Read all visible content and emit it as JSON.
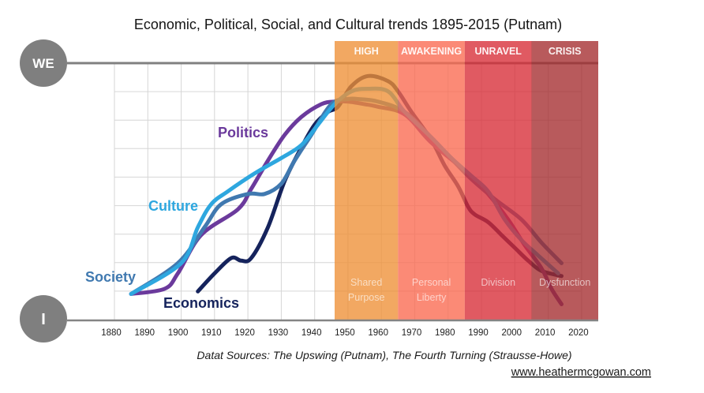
{
  "chart_data": {
    "type": "line",
    "title": "Economic, Political, Social, and Cultural trends 1895-2015 (Putnam)",
    "xlabel": "",
    "ylabel": "",
    "xlim": [
      1880,
      2025
    ],
    "ylim": [
      0,
      100
    ],
    "x_ticks": [
      1880,
      1890,
      1900,
      1910,
      1920,
      1930,
      1940,
      1950,
      1960,
      1970,
      1980,
      1990,
      2000,
      2010,
      2020
    ],
    "y_axis_labels": {
      "top": "WE",
      "bottom": "I"
    },
    "grid": true,
    "legend": "inline labels next to curves",
    "series": [
      {
        "name": "Politics",
        "color": "#6b3a9c",
        "points": [
          [
            1885,
            10
          ],
          [
            1895,
            12
          ],
          [
            1899,
            18
          ],
          [
            1906,
            33
          ],
          [
            1917,
            43
          ],
          [
            1921,
            51
          ],
          [
            1926,
            62
          ],
          [
            1931,
            72
          ],
          [
            1936,
            79
          ],
          [
            1942,
            84
          ],
          [
            1946,
            85
          ],
          [
            1950,
            85
          ],
          [
            1955,
            84
          ],
          [
            1959,
            83
          ],
          [
            1967,
            80
          ],
          [
            1975,
            69
          ],
          [
            1986,
            57
          ],
          [
            1992,
            49
          ],
          [
            1998,
            39
          ],
          [
            2003,
            29
          ],
          [
            2008,
            20
          ],
          [
            2011,
            12
          ],
          [
            2014,
            6
          ]
        ]
      },
      {
        "name": "Culture",
        "color": "#2ea7df",
        "points": [
          [
            1885,
            10
          ],
          [
            1900,
            22
          ],
          [
            1905,
            36
          ],
          [
            1909,
            45
          ],
          [
            1914,
            50
          ],
          [
            1922,
            57
          ],
          [
            1930,
            63
          ],
          [
            1936,
            68
          ],
          [
            1941,
            76
          ],
          [
            1946,
            84
          ],
          [
            1951,
            89
          ],
          [
            1956,
            90
          ],
          [
            1962,
            89
          ],
          [
            1967,
            81
          ],
          [
            1975,
            71
          ],
          [
            1981,
            63
          ],
          [
            1987,
            56
          ],
          [
            1992,
            50
          ],
          [
            1997,
            39
          ],
          [
            2002,
            31
          ],
          [
            2007,
            25
          ],
          [
            2013,
            18
          ]
        ]
      },
      {
        "name": "Society",
        "color": "#4079b0",
        "points": [
          [
            1885,
            10
          ],
          [
            1899,
            22
          ],
          [
            1907,
            36
          ],
          [
            1912,
            45
          ],
          [
            1920,
            49
          ],
          [
            1925,
            49
          ],
          [
            1930,
            53
          ],
          [
            1934,
            62
          ],
          [
            1939,
            72
          ],
          [
            1945,
            84
          ],
          [
            1950,
            86
          ],
          [
            1953,
            86
          ],
          [
            1959,
            85
          ],
          [
            1967,
            81
          ],
          [
            1975,
            71
          ],
          [
            1986,
            56
          ],
          [
            1994,
            47
          ],
          [
            2002,
            39
          ],
          [
            2008,
            30
          ],
          [
            2014,
            22
          ]
        ]
      },
      {
        "name": "Economics",
        "color": "#15235c",
        "points": [
          [
            1905,
            11
          ],
          [
            1910,
            18
          ],
          [
            1915,
            24
          ],
          [
            1918,
            23
          ],
          [
            1921,
            24
          ],
          [
            1926,
            36
          ],
          [
            1931,
            54
          ],
          [
            1936,
            67
          ],
          [
            1940,
            76
          ],
          [
            1944,
            81
          ],
          [
            1947,
            83
          ],
          [
            1951,
            91
          ],
          [
            1956,
            95
          ],
          [
            1962,
            93
          ],
          [
            1965,
            89
          ],
          [
            1969,
            81
          ],
          [
            1975,
            70
          ],
          [
            1979,
            60
          ],
          [
            1983,
            52
          ],
          [
            1986,
            44
          ],
          [
            1988,
            41
          ],
          [
            1992,
            38
          ],
          [
            1996,
            33
          ],
          [
            2000,
            28
          ],
          [
            2004,
            23
          ],
          [
            2008,
            19
          ],
          [
            2014,
            17
          ]
        ]
      }
    ],
    "eras": [
      {
        "name": "HIGH",
        "caption": [
          "Shared",
          "Purpose"
        ],
        "start": 1946,
        "end": 1965,
        "color": "#ee8f36"
      },
      {
        "name": "AWAKENING",
        "caption": [
          "Personal",
          "Liberty"
        ],
        "start": 1965,
        "end": 1985,
        "color": "#fa694f"
      },
      {
        "name": "UNRAVEL",
        "caption": [
          "Division"
        ],
        "start": 1985,
        "end": 2005,
        "color": "#d72b36"
      },
      {
        "name": "CRISIS",
        "caption": [
          "Dysfunction"
        ],
        "start": 2005,
        "end": 2025,
        "color": "#a42b2e"
      }
    ],
    "source_note": "Datat Sources: The Upswing (Putnam), The Fourth Turning (Strausse-Howe)",
    "credit": "www.heathermcgowan.com"
  },
  "colors": {
    "axis_circle": "#7f7f7f",
    "axis_line": "#848484",
    "grid": "#d6d6d6"
  }
}
